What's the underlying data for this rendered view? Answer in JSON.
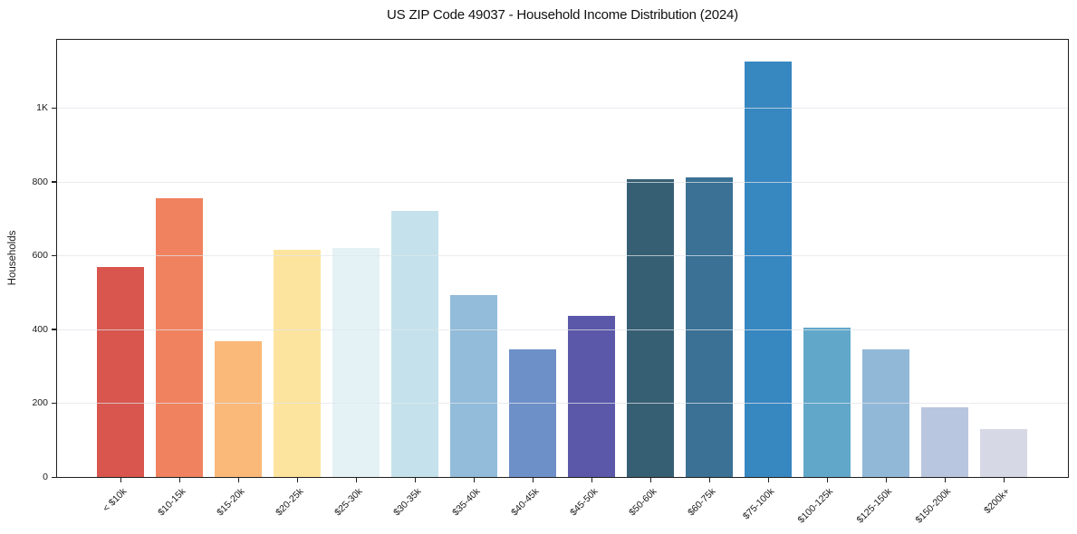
{
  "chart_data": {
    "type": "bar",
    "title": "US ZIP Code 49037 - Household Income Distribution (2024)",
    "xlabel": "",
    "ylabel": "Households",
    "categories": [
      "< $10k",
      "$10-15k",
      "$15-20k",
      "$20-25k",
      "$25-30k",
      "$30-35k",
      "$35-40k",
      "$40-45k",
      "$45-50k",
      "$50-60k",
      "$60-75k",
      "$75-100k",
      "$100-125k",
      "$125-150k",
      "$150-200k",
      "$200k+"
    ],
    "values": [
      570,
      755,
      368,
      615,
      620,
      722,
      492,
      345,
      437,
      806,
      812,
      1127,
      404,
      345,
      188,
      130
    ],
    "bar_colors": [
      "#d8564e",
      "#f0825f",
      "#fab978",
      "#fde49e",
      "#e4f2f5",
      "#c5e2ec",
      "#92bcda",
      "#6e90c8",
      "#5b58a9",
      "#365f73",
      "#3a7195",
      "#3787c1",
      "#61a7ca",
      "#92b8d8",
      "#b9c6df",
      "#d7d8e5"
    ],
    "yticks": [
      {
        "value": 0,
        "label": "0"
      },
      {
        "value": 200,
        "label": "200"
      },
      {
        "value": 400,
        "label": "400"
      },
      {
        "value": 600,
        "label": "600"
      },
      {
        "value": 800,
        "label": "800"
      },
      {
        "value": 1000,
        "label": "1K"
      }
    ],
    "ylim": [
      0,
      1185
    ],
    "grid": "horizontal",
    "legend": "none"
  },
  "colors": {
    "background": "#ffffff",
    "spine": "#1f1f1f",
    "gridline": "#e8e8ec",
    "text": "#1a1a1a"
  }
}
